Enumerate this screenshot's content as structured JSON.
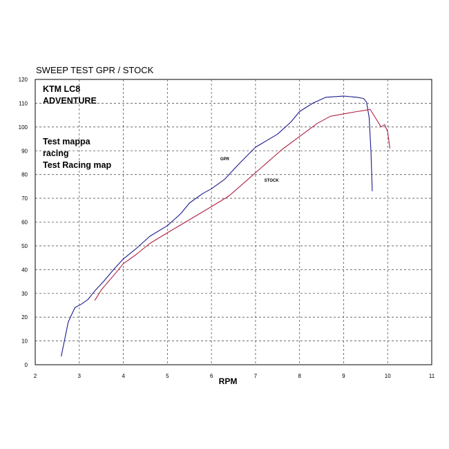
{
  "chart_data": {
    "type": "line",
    "title": "SWEEP TEST  GPR / STOCK",
    "xlabel": "RPM",
    "ylabel": "",
    "xlim": [
      2,
      11
    ],
    "ylim": [
      0,
      120
    ],
    "xticks": [
      "2",
      "3",
      "4",
      "5",
      "6",
      "7",
      "8",
      "9",
      "10",
      "11"
    ],
    "yticks": [
      "0",
      "10",
      "20",
      "30",
      "40",
      "50",
      "60",
      "70",
      "80",
      "90",
      "100",
      "110",
      "120"
    ],
    "grid": true,
    "annotations": [
      "KTM LC8",
      "ADVENTURE",
      "Test mappa",
      "racing",
      "Test Racing map"
    ],
    "series": [
      {
        "name": "GPR",
        "color": "#1a1a8c",
        "points": [
          [
            2.59,
            3.5
          ],
          [
            2.65,
            9
          ],
          [
            2.75,
            18
          ],
          [
            2.9,
            24
          ],
          [
            3.05,
            25.5
          ],
          [
            3.2,
            27.5
          ],
          [
            3.35,
            31
          ],
          [
            3.55,
            35
          ],
          [
            3.8,
            40.5
          ],
          [
            4.0,
            44.5
          ],
          [
            4.3,
            49
          ],
          [
            4.6,
            54
          ],
          [
            5.0,
            58.5
          ],
          [
            5.3,
            63.5
          ],
          [
            5.5,
            68
          ],
          [
            5.8,
            72
          ],
          [
            6.0,
            74
          ],
          [
            6.3,
            78
          ],
          [
            6.6,
            84
          ],
          [
            7.0,
            91.5
          ],
          [
            7.5,
            97
          ],
          [
            7.8,
            102
          ],
          [
            8.0,
            106.5
          ],
          [
            8.3,
            110
          ],
          [
            8.6,
            112.5
          ],
          [
            9.0,
            113
          ],
          [
            9.3,
            112.5
          ],
          [
            9.45,
            112
          ],
          [
            9.52,
            110.5
          ],
          [
            9.58,
            104
          ],
          [
            9.62,
            90
          ],
          [
            9.65,
            73
          ]
        ]
      },
      {
        "name": "STOCK",
        "color": "#b02040",
        "points": [
          [
            3.35,
            27
          ],
          [
            3.5,
            31.5
          ],
          [
            3.8,
            38
          ],
          [
            4.0,
            42.5
          ],
          [
            4.3,
            46.5
          ],
          [
            4.6,
            51
          ],
          [
            5.0,
            55.5
          ],
          [
            5.5,
            61
          ],
          [
            6.0,
            66.5
          ],
          [
            6.4,
            71
          ],
          [
            6.8,
            77.5
          ],
          [
            7.2,
            84
          ],
          [
            7.6,
            90.5
          ],
          [
            8.0,
            96
          ],
          [
            8.4,
            101.5
          ],
          [
            8.7,
            104.5
          ],
          [
            9.0,
            105.5
          ],
          [
            9.3,
            106.5
          ],
          [
            9.5,
            107
          ],
          [
            9.6,
            107.5
          ],
          [
            9.75,
            103
          ],
          [
            9.85,
            100
          ],
          [
            9.93,
            101
          ],
          [
            10.0,
            98
          ],
          [
            10.05,
            91
          ]
        ]
      }
    ]
  }
}
